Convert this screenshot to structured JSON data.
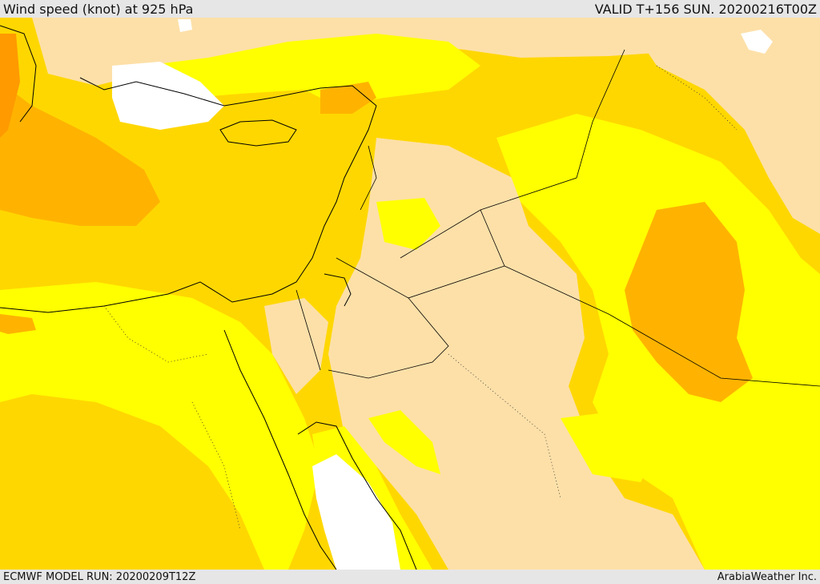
{
  "header": {
    "title": "Wind speed (knot) at 925 hPa",
    "valid": "VALID T+156 SUN. 20200216T00Z"
  },
  "footer": {
    "model_run": "ECMWF MODEL RUN: 20200209T12Z",
    "credit": "ArabiaWeather Inc."
  },
  "colors": {
    "calm": "#fde0a8",
    "light": "#ffff00",
    "moderate": "#ffd700",
    "strong": "#ffb300",
    "very_strong": "#ff9a00",
    "water": "#ffffff",
    "outline": "#000000"
  },
  "icons": [
    "coastline-outline",
    "border-line"
  ]
}
